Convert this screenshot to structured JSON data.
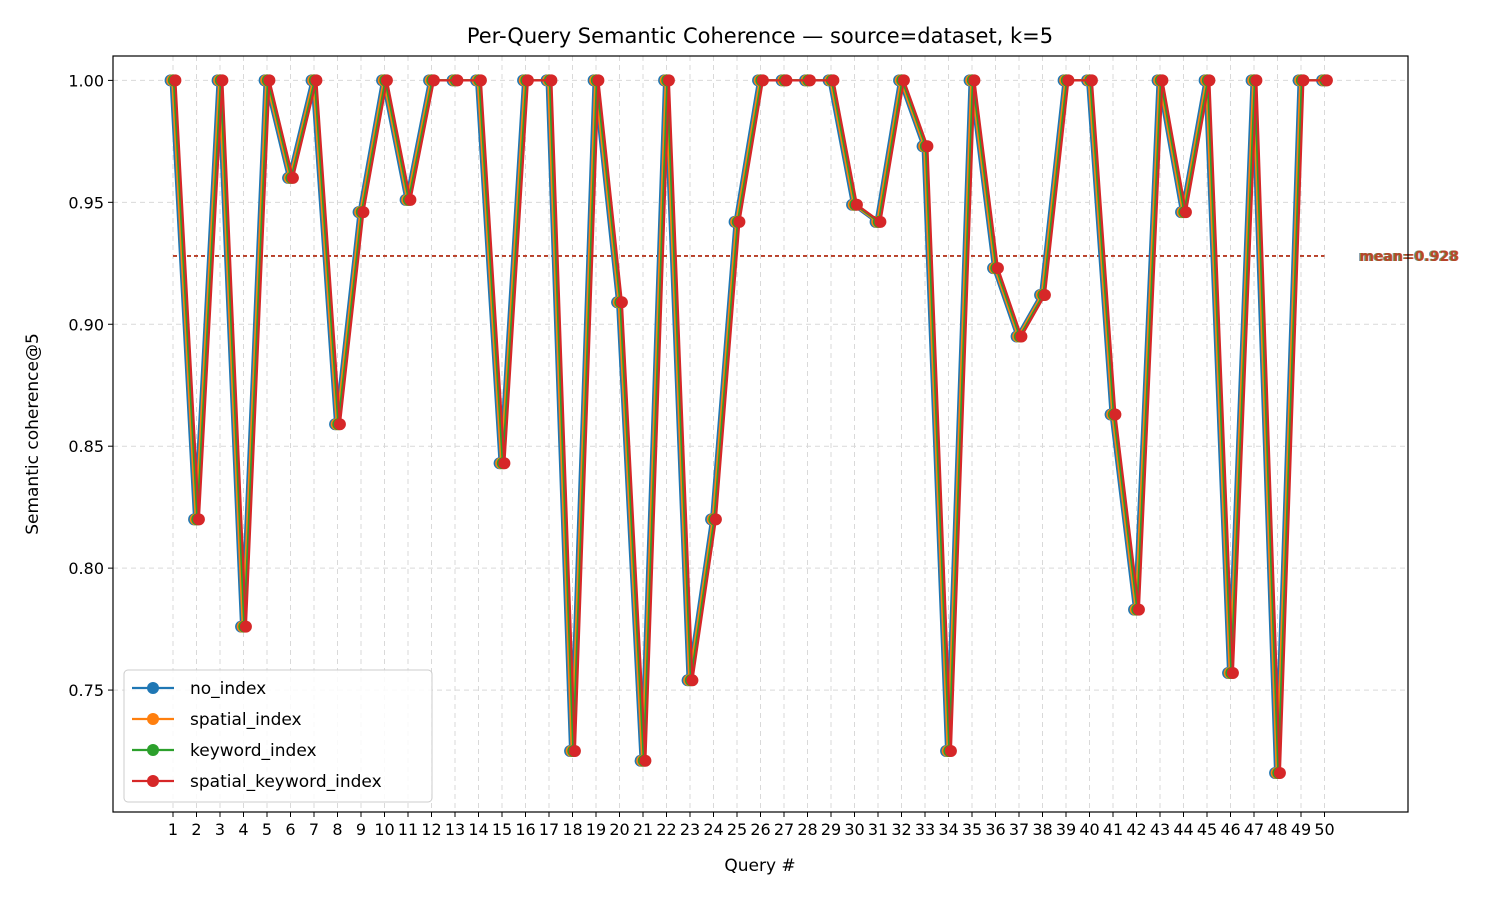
{
  "chart_data": {
    "type": "line",
    "title": "Per-Query Semantic Coherence — source=dataset, k=5",
    "xlabel": "Query #",
    "ylabel": "Semantic coherence@5",
    "x": [
      1,
      2,
      3,
      4,
      5,
      6,
      7,
      8,
      9,
      10,
      11,
      12,
      13,
      14,
      15,
      16,
      17,
      18,
      19,
      20,
      21,
      22,
      23,
      24,
      25,
      26,
      27,
      28,
      29,
      30,
      31,
      32,
      33,
      34,
      35,
      36,
      37,
      38,
      39,
      40,
      41,
      42,
      43,
      44,
      45,
      46,
      47,
      48,
      49,
      50
    ],
    "ylim": [
      0.7,
      1.01
    ],
    "yticks": [
      0.75,
      0.8,
      0.85,
      0.9,
      0.95,
      1.0
    ],
    "yticklabels": [
      "0.75",
      "0.80",
      "0.85",
      "0.90",
      "0.95",
      "1.00"
    ],
    "grid": true,
    "legend_position": "lower-left",
    "series": [
      {
        "name": "no_index",
        "color": "#1f77b4",
        "mean_label": "mean=0.928",
        "values": [
          1.0,
          0.82,
          1.0,
          0.776,
          1.0,
          0.96,
          1.0,
          0.859,
          0.946,
          1.0,
          0.951,
          1.0,
          1.0,
          1.0,
          0.843,
          1.0,
          1.0,
          0.725,
          1.0,
          0.909,
          0.721,
          1.0,
          0.754,
          0.82,
          0.942,
          1.0,
          1.0,
          1.0,
          1.0,
          0.949,
          0.942,
          1.0,
          0.973,
          0.725,
          1.0,
          0.923,
          0.895,
          0.912,
          1.0,
          1.0,
          0.863,
          0.783,
          1.0,
          0.946,
          1.0,
          0.757,
          1.0,
          0.716,
          1.0,
          1.0
        ]
      },
      {
        "name": "spatial_index",
        "color": "#ff7f0e",
        "mean_label": "mean=0.928",
        "values": [
          1.0,
          0.82,
          1.0,
          0.776,
          1.0,
          0.96,
          1.0,
          0.859,
          0.946,
          1.0,
          0.951,
          1.0,
          1.0,
          1.0,
          0.843,
          1.0,
          1.0,
          0.725,
          1.0,
          0.909,
          0.721,
          1.0,
          0.754,
          0.82,
          0.942,
          1.0,
          1.0,
          1.0,
          1.0,
          0.949,
          0.942,
          1.0,
          0.973,
          0.725,
          1.0,
          0.923,
          0.895,
          0.912,
          1.0,
          1.0,
          0.863,
          0.783,
          1.0,
          0.946,
          1.0,
          0.757,
          1.0,
          0.716,
          1.0,
          1.0
        ]
      },
      {
        "name": "keyword_index",
        "color": "#2ca02c",
        "mean_label": "mean=0.928",
        "values": [
          1.0,
          0.82,
          1.0,
          0.776,
          1.0,
          0.96,
          1.0,
          0.859,
          0.946,
          1.0,
          0.951,
          1.0,
          1.0,
          1.0,
          0.843,
          1.0,
          1.0,
          0.725,
          1.0,
          0.909,
          0.721,
          1.0,
          0.754,
          0.82,
          0.942,
          1.0,
          1.0,
          1.0,
          1.0,
          0.949,
          0.942,
          1.0,
          0.973,
          0.725,
          1.0,
          0.923,
          0.895,
          0.912,
          1.0,
          1.0,
          0.863,
          0.783,
          1.0,
          0.946,
          1.0,
          0.757,
          1.0,
          0.716,
          1.0,
          1.0
        ]
      },
      {
        "name": "spatial_keyword_index",
        "color": "#d62728",
        "mean_label": "mean=0.928",
        "values": [
          1.0,
          0.82,
          1.0,
          0.776,
          1.0,
          0.96,
          1.0,
          0.859,
          0.946,
          1.0,
          0.951,
          1.0,
          1.0,
          1.0,
          0.843,
          1.0,
          1.0,
          0.725,
          1.0,
          0.909,
          0.721,
          1.0,
          0.754,
          0.82,
          0.942,
          1.0,
          1.0,
          1.0,
          1.0,
          0.949,
          0.942,
          1.0,
          0.973,
          0.725,
          1.0,
          0.923,
          0.895,
          0.912,
          1.0,
          1.0,
          0.863,
          0.783,
          1.0,
          0.946,
          1.0,
          0.757,
          1.0,
          0.716,
          1.0,
          1.0
        ]
      }
    ],
    "mean_value": 0.928
  }
}
